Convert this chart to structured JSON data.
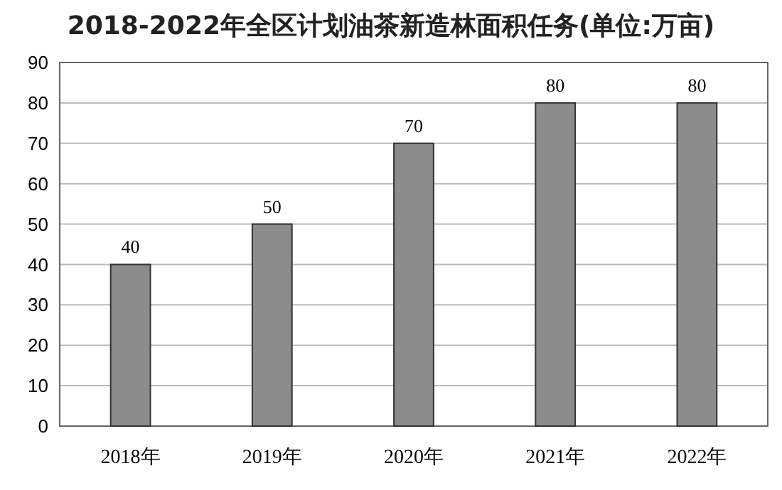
{
  "chart_data": {
    "type": "bar",
    "title": "2018-2022年全区计划油茶新造林面积任务(单位:万亩)",
    "categories": [
      "2018年",
      "2019年",
      "2020年",
      "2021年",
      "2022年"
    ],
    "values": [
      40,
      50,
      70,
      80,
      80
    ],
    "color": "#8c8c8c",
    "ylim": [
      0,
      90
    ],
    "yticks": [
      0,
      10,
      20,
      30,
      40,
      50,
      60,
      70,
      80,
      90
    ],
    "grid": "y",
    "data_labels": true
  }
}
